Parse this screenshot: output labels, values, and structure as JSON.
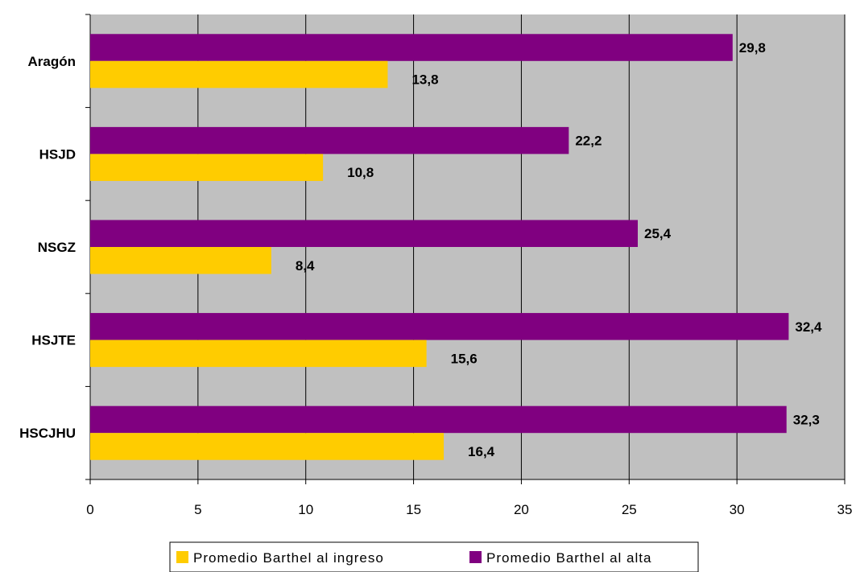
{
  "chart_data": {
    "type": "bar",
    "orientation": "horizontal",
    "categories": [
      "Aragón",
      "HSJD",
      "NSGZ",
      "HSJTE",
      "HSCJHU"
    ],
    "series": [
      {
        "name": "Promedio Barthel al ingreso",
        "color": "#FFCC00",
        "values": [
          13.8,
          10.8,
          8.4,
          15.6,
          16.4
        ],
        "labels": [
          "13,8",
          "10,8",
          "8,4",
          "15,6",
          "16,4"
        ]
      },
      {
        "name": "Promedio Barthel al alta",
        "color": "#800080",
        "values": [
          29.8,
          22.2,
          25.4,
          32.4,
          32.3
        ],
        "labels": [
          "29,8",
          "22,2",
          "25,4",
          "32,4",
          "32,3"
        ]
      }
    ],
    "xlim": [
      0,
      35
    ],
    "xticks": [
      "0",
      "5",
      "10",
      "15",
      "20",
      "25",
      "30",
      "35"
    ],
    "grid": true,
    "plot_background": "#C0C0C0",
    "legend_position": "bottom"
  }
}
